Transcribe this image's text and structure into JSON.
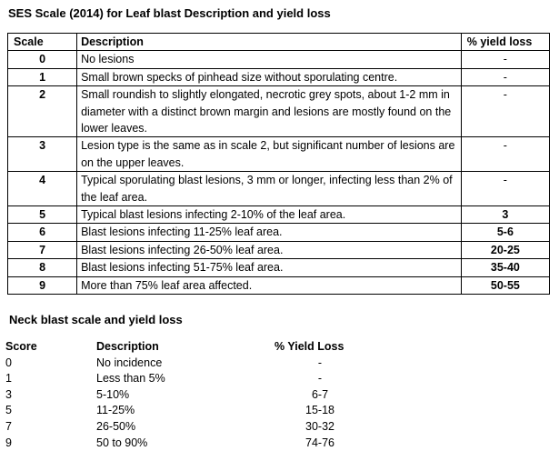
{
  "ses_title": "SES Scale (2014) for Leaf blast Description and yield loss",
  "ses_table": {
    "headers": {
      "scale": "Scale",
      "description": "Description",
      "yield": "% yield loss"
    },
    "rows": [
      {
        "scale": "0",
        "description": "No lesions",
        "yield": "-"
      },
      {
        "scale": "1",
        "description": "Small brown specks of pinhead size without sporulating centre.",
        "yield": "-"
      },
      {
        "scale": "2",
        "description": "Small roundish to slightly elongated, necrotic grey spots, about 1-2 mm in diameter with a distinct brown margin and lesions are mostly found on the lower leaves.",
        "yield": "-"
      },
      {
        "scale": "3",
        "description": "Lesion type is the same as in scale 2, but significant number of lesions are on the upper leaves.",
        "yield": "-"
      },
      {
        "scale": "4",
        "description": "Typical sporulating blast lesions, 3 mm or longer, infecting less than 2% of the leaf area.",
        "yield": "-"
      },
      {
        "scale": "5",
        "description": "Typical blast lesions infecting 2-10% of the leaf area.",
        "yield": "3"
      },
      {
        "scale": "6",
        "description": "Blast lesions infecting 11-25% leaf area.",
        "yield": "5-6"
      },
      {
        "scale": "7",
        "description": "Blast lesions infecting 26-50% leaf area.",
        "yield": "20-25"
      },
      {
        "scale": "8",
        "description": "Blast lesions infecting 51-75% leaf area.",
        "yield": "35-40"
      },
      {
        "scale": "9",
        "description": "More than 75% leaf area affected.",
        "yield": "50-55"
      }
    ]
  },
  "neck_title": "Neck blast scale and yield loss",
  "neck_table": {
    "headers": {
      "score": "Score",
      "description": "Description",
      "yield": "% Yield Loss"
    },
    "rows": [
      {
        "score": "0",
        "description": "No incidence",
        "yield": "-"
      },
      {
        "score": "1",
        "description": "Less than 5%",
        "yield": "-"
      },
      {
        "score": "3",
        "description": "5-10%",
        "yield": "6-7"
      },
      {
        "score": "5",
        "description": "11-25%",
        "yield": "15-18"
      },
      {
        "score": "7",
        "description": "26-50%",
        "yield": "30-32"
      },
      {
        "score": "9",
        "description": "50 to 90%",
        "yield": "74-76"
      }
    ]
  }
}
